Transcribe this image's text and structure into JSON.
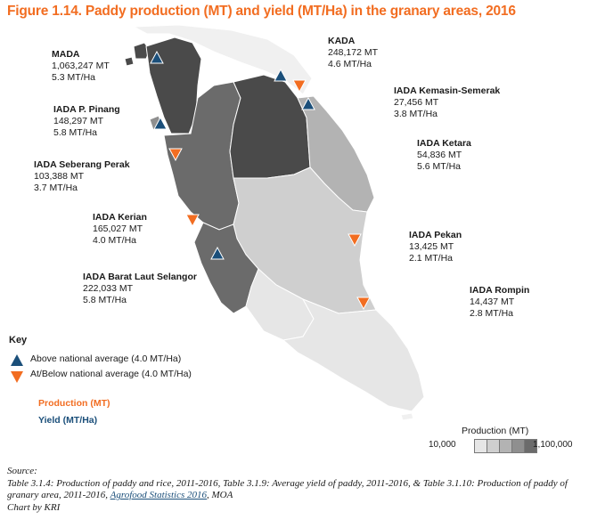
{
  "title": "Figure 1.14. Paddy production (MT) and yield (MT/Ha) in the granary areas, 2016",
  "areas": [
    {
      "id": "mada",
      "name": "MADA",
      "production": "1,063,247 MT",
      "yield": "5.3 MT/Ha",
      "marker": "above"
    },
    {
      "id": "kada",
      "name": "KADA",
      "production": "248,172 MT",
      "yield": "4.6 MT/Ha",
      "marker": "above"
    },
    {
      "id": "kemasin",
      "name": "IADA Kemasin-Semerak",
      "production": "27,456 MT",
      "yield": "3.8 MT/Ha",
      "marker": "below"
    },
    {
      "id": "pinang",
      "name": "IADA P. Pinang",
      "production": "148,297 MT",
      "yield": "5.8 MT/Ha",
      "marker": "above"
    },
    {
      "id": "ketara",
      "name": "IADA Ketara",
      "production": "54,836 MT",
      "yield": "5.6 MT/Ha",
      "marker": "above"
    },
    {
      "id": "seberang",
      "name": "IADA Seberang Perak",
      "production": "103,388 MT",
      "yield": "3.7 MT/Ha",
      "marker": "below"
    },
    {
      "id": "kerian",
      "name": "IADA Kerian",
      "production": "165,027 MT",
      "yield": "4.0 MT/Ha",
      "marker": "below"
    },
    {
      "id": "pekan",
      "name": "IADA Pekan",
      "production": "13,425 MT",
      "yield": "2.1 MT/Ha",
      "marker": "below"
    },
    {
      "id": "bls",
      "name": "IADA Barat Laut Selangor",
      "production": "222,033 MT",
      "yield": "5.8 MT/Ha",
      "marker": "above"
    },
    {
      "id": "rompin",
      "name": "IADA Rompin",
      "production": "14,437 MT",
      "yield": "2.8 MT/Ha",
      "marker": "below"
    }
  ],
  "key": {
    "title": "Key",
    "above": "Above national average (4.0 MT/Ha)",
    "below": "At/Below national average (4.0 MT/Ha)",
    "production": "Production (MT)",
    "yield": "Yield (MT/Ha)"
  },
  "scale": {
    "title": "Production (MT)",
    "min": "10,000",
    "max": "1,100,000",
    "colors": [
      "#e6e6e6",
      "#cfcfcf",
      "#b3b3b3",
      "#8f8f8f",
      "#6b6b6b",
      "#4a4a4a"
    ]
  },
  "colors": {
    "above_marker": "#1b4f7a",
    "below_marker": "#f26d21",
    "title": "#f26d21"
  },
  "source": {
    "label": "Source:",
    "text1": "Table 3.1.4: Production of paddy and rice, 2011-2016, Table 3.1.9: Average yield of paddy, 2011-2016, & Table 3.1.10: Production of paddy of granary area, 2011-2016, ",
    "link": "Agrofood Statistics 2016",
    "text2": ", MOA",
    "credit": "Chart by KRI"
  }
}
